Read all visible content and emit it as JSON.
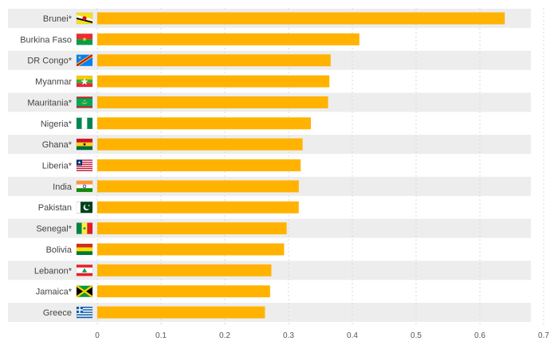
{
  "chart_data": {
    "type": "bar",
    "orientation": "horizontal",
    "title": "",
    "xlabel": "",
    "ylabel": "",
    "categories": [
      "Brunei*",
      "Burkina Faso",
      "DR Congo*",
      "Myanmar",
      "Mauritania*",
      "Nigeria*",
      "Ghana*",
      "Liberia*",
      "India",
      "Pakistan",
      "Senegal*",
      "Bolivia",
      "Lebanon*",
      "Jamaica*",
      "Greece"
    ],
    "flags": [
      "brunei-flag-icon",
      "burkina-faso-flag-icon",
      "dr-congo-flag-icon",
      "myanmar-flag-icon",
      "mauritania-flag-icon",
      "nigeria-flag-icon",
      "ghana-flag-icon",
      "liberia-flag-icon",
      "india-flag-icon",
      "pakistan-flag-icon",
      "senegal-flag-icon",
      "bolivia-flag-icon",
      "lebanon-flag-icon",
      "jamaica-flag-icon",
      "greece-flag-icon"
    ],
    "values": [
      0.639,
      0.411,
      0.366,
      0.364,
      0.362,
      0.335,
      0.322,
      0.319,
      0.316,
      0.316,
      0.297,
      0.293,
      0.273,
      0.271,
      0.263
    ],
    "xlim": [
      0,
      0.7
    ],
    "xticks": [
      "0",
      "0.1",
      "0.2",
      "0.3",
      "0.4",
      "0.5",
      "0.6",
      "0.7"
    ],
    "grid": true,
    "legend": "none",
    "colors": {
      "bar": "#ffb300",
      "band": "#ededed",
      "grid": "#d9d9d9"
    }
  }
}
